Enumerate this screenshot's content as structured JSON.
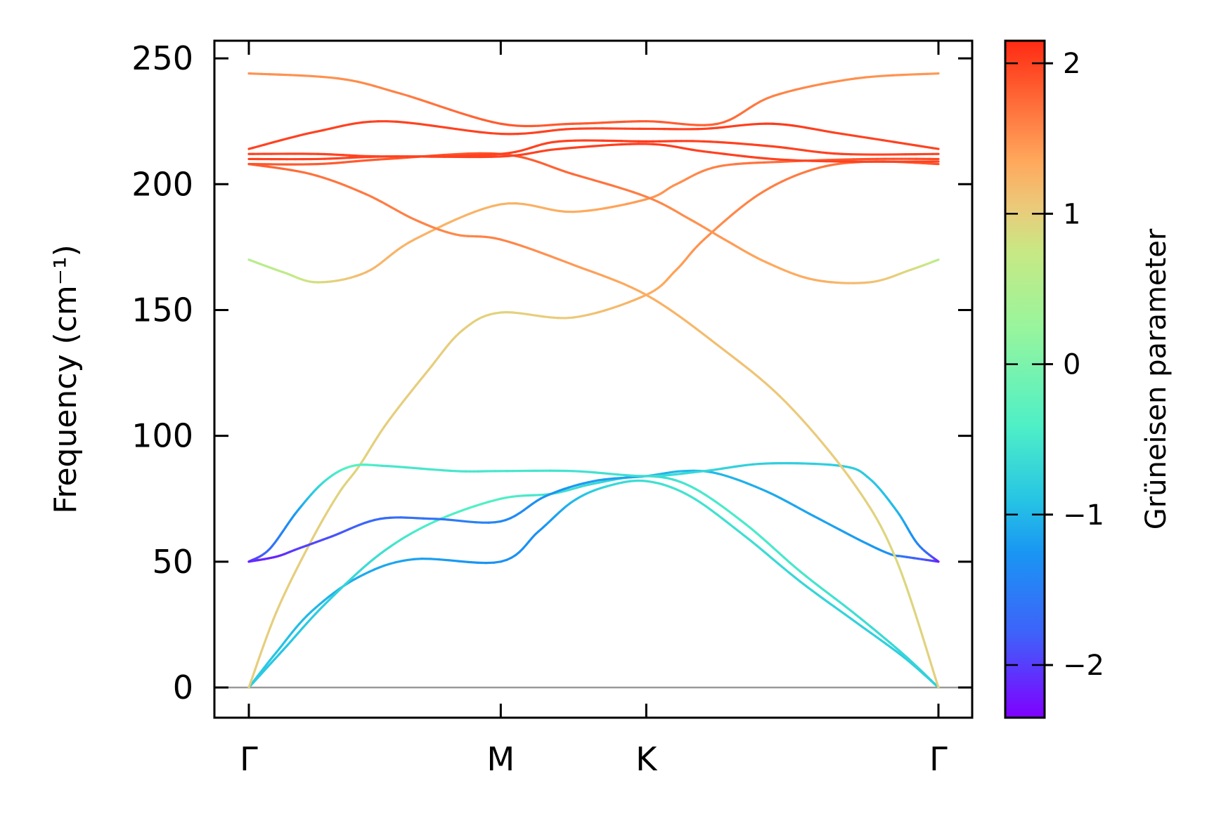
{
  "chart_data": {
    "type": "line",
    "ylabel": "Frequency (cm⁻¹)",
    "colorbar_label": "Grüneisen parameter",
    "ylim": [
      -12,
      257
    ],
    "yticks": [
      0,
      50,
      100,
      150,
      200,
      250
    ],
    "x_positions": [
      0.0,
      0.3653,
      0.5763,
      1.0
    ],
    "x_ticklabels": [
      "Γ",
      "M",
      "K",
      "Γ"
    ],
    "colorbar": {
      "range": [
        -2.35,
        2.15
      ],
      "ticks": [
        -2,
        -1,
        0,
        1,
        2
      ],
      "tick_labels": [
        "−2",
        "−1",
        "0",
        "1",
        "2"
      ],
      "colormap": "rainbow",
      "stops": [
        {
          "v": -2.35,
          "c": "#7f00ff"
        },
        {
          "v": -1.8,
          "c": "#3f61fa"
        },
        {
          "v": -1.25,
          "c": "#1996f3"
        },
        {
          "v": -0.9,
          "c": "#27c5e4"
        },
        {
          "v": -0.4,
          "c": "#4ff0c6"
        },
        {
          "v": 0.25,
          "c": "#99f59c"
        },
        {
          "v": 0.75,
          "c": "#c8e884"
        },
        {
          "v": 1.05,
          "c": "#ecc97a"
        },
        {
          "v": 1.35,
          "c": "#ffa85c"
        },
        {
          "v": 1.75,
          "c": "#ff6a38"
        },
        {
          "v": 2.15,
          "c": "#ff2a12"
        }
      ]
    },
    "zero_line": {
      "y": 0,
      "color": "#999999"
    },
    "series": [
      {
        "points": [
          [
            0.0,
            0,
            -0.8
          ],
          [
            0.04,
            14,
            -0.9
          ],
          [
            0.09,
            30,
            -1.0
          ],
          [
            0.16,
            44,
            -1.1
          ],
          [
            0.24,
            51,
            -1.15
          ],
          [
            0.3653,
            50,
            -1.3
          ],
          [
            0.42,
            62,
            -1.3
          ],
          [
            0.47,
            74,
            -1.0
          ],
          [
            0.52,
            80,
            -0.7
          ],
          [
            0.5763,
            82,
            -0.6
          ],
          [
            0.64,
            76,
            -0.55
          ],
          [
            0.72,
            60,
            -0.6
          ],
          [
            0.8,
            42,
            -0.7
          ],
          [
            0.88,
            26,
            -0.75
          ],
          [
            0.95,
            12,
            -0.8
          ],
          [
            1.0,
            0,
            -0.8
          ]
        ]
      },
      {
        "points": [
          [
            0.0,
            0,
            -0.8
          ],
          [
            0.05,
            15,
            -0.9
          ],
          [
            0.11,
            33,
            -0.8
          ],
          [
            0.19,
            53,
            -0.6
          ],
          [
            0.27,
            66,
            -0.4
          ],
          [
            0.3653,
            75,
            -0.4
          ],
          [
            0.44,
            77,
            -0.55
          ],
          [
            0.5,
            81,
            -0.7
          ],
          [
            0.5763,
            84,
            -0.7
          ],
          [
            0.64,
            80,
            -0.5
          ],
          [
            0.72,
            65,
            -0.45
          ],
          [
            0.8,
            46,
            -0.5
          ],
          [
            0.88,
            29,
            -0.6
          ],
          [
            0.95,
            13,
            -0.7
          ],
          [
            1.0,
            0,
            -0.8
          ]
        ]
      },
      {
        "points": [
          [
            0.0,
            0,
            1.0
          ],
          [
            0.04,
            30,
            1.0
          ],
          [
            0.09,
            58,
            1.0
          ],
          [
            0.13,
            77,
            0.95
          ],
          [
            0.16,
            88,
            0.95
          ],
          [
            0.2,
            105,
            1.0
          ],
          [
            0.26,
            126,
            1.0
          ],
          [
            0.31,
            142,
            1.0
          ],
          [
            0.3653,
            149,
            0.95
          ],
          [
            0.47,
            147,
            1.05
          ],
          [
            0.5763,
            156,
            1.3
          ],
          [
            0.62,
            166,
            1.4
          ],
          [
            0.66,
            178,
            1.5
          ],
          [
            0.74,
            196,
            1.6
          ],
          [
            0.82,
            206,
            1.65
          ],
          [
            0.9,
            209,
            1.75
          ],
          [
            1.0,
            208,
            1.9
          ]
        ]
      },
      {
        "points": [
          [
            0.0,
            50,
            -2.1
          ],
          [
            0.04,
            52,
            -2.15
          ],
          [
            0.07,
            55,
            -2.0
          ],
          [
            0.12,
            60,
            -1.9
          ],
          [
            0.19,
            67,
            -1.7
          ],
          [
            0.27,
            67,
            -1.6
          ],
          [
            0.3653,
            66,
            -1.4
          ],
          [
            0.43,
            76,
            -1.3
          ],
          [
            0.5,
            82,
            -1.2
          ],
          [
            0.5763,
            84,
            -1.1
          ],
          [
            0.63,
            86,
            -1.0
          ],
          [
            0.68,
            85,
            -1.0
          ],
          [
            0.75,
            78,
            -1.1
          ],
          [
            0.82,
            68,
            -1.15
          ],
          [
            0.89,
            58,
            -1.2
          ],
          [
            0.93,
            53,
            -1.3
          ],
          [
            0.95,
            52,
            -1.6
          ],
          [
            1.0,
            50,
            -2.1
          ]
        ]
      },
      {
        "points": [
          [
            0.0,
            50,
            -2.2
          ],
          [
            0.03,
            55,
            -1.7
          ],
          [
            0.07,
            70,
            -1.2
          ],
          [
            0.11,
            82,
            -0.6
          ],
          [
            0.15,
            88,
            -0.3
          ],
          [
            0.2,
            88,
            -0.5
          ],
          [
            0.3,
            86,
            -0.5
          ],
          [
            0.3653,
            86,
            -0.5
          ],
          [
            0.47,
            86,
            -0.55
          ],
          [
            0.5763,
            84,
            -0.6
          ],
          [
            0.66,
            86,
            -0.7
          ],
          [
            0.75,
            89,
            -0.8
          ],
          [
            0.86,
            88,
            -0.8
          ],
          [
            0.9,
            83,
            -0.85
          ],
          [
            0.94,
            70,
            -1.0
          ],
          [
            0.97,
            57,
            -1.4
          ],
          [
            1.0,
            50,
            -2.2
          ]
        ]
      },
      {
        "points": [
          [
            0.0,
            170,
            0.55
          ],
          [
            0.05,
            165,
            0.65
          ],
          [
            0.1,
            161,
            0.85
          ],
          [
            0.17,
            165,
            1.2
          ],
          [
            0.24,
            178,
            1.25
          ],
          [
            0.3653,
            192,
            1.25
          ],
          [
            0.47,
            189,
            1.3
          ],
          [
            0.5763,
            194,
            1.45
          ],
          [
            0.62,
            200,
            1.5
          ],
          [
            0.68,
            207,
            1.6
          ],
          [
            0.78,
            209,
            1.75
          ],
          [
            0.9,
            210,
            1.9
          ],
          [
            1.0,
            210,
            1.95
          ]
        ]
      },
      {
        "points": [
          [
            0.0,
            208,
            1.85
          ],
          [
            0.09,
            204,
            1.7
          ],
          [
            0.17,
            196,
            1.65
          ],
          [
            0.24,
            186,
            1.6
          ],
          [
            0.3,
            180,
            1.55
          ],
          [
            0.3653,
            178,
            1.6
          ],
          [
            0.47,
            168,
            1.45
          ],
          [
            0.5763,
            156,
            1.3
          ],
          [
            0.68,
            136,
            1.15
          ],
          [
            0.78,
            113,
            1.05
          ],
          [
            0.88,
            80,
            1.0
          ],
          [
            0.94,
            50,
            0.9
          ],
          [
            1.0,
            0,
            1.0
          ]
        ]
      },
      {
        "points": [
          [
            0.0,
            208,
            1.9
          ],
          [
            0.1,
            208,
            1.85
          ],
          [
            0.2,
            210,
            1.85
          ],
          [
            0.3653,
            212,
            1.9
          ],
          [
            0.47,
            204,
            1.75
          ],
          [
            0.5763,
            195,
            1.6
          ],
          [
            0.64,
            186,
            1.5
          ],
          [
            0.69,
            178,
            1.45
          ],
          [
            0.75,
            169,
            1.35
          ],
          [
            0.82,
            162,
            1.3
          ],
          [
            0.9,
            161,
            1.15
          ],
          [
            0.96,
            166,
            0.9
          ],
          [
            1.0,
            170,
            0.6
          ]
        ]
      },
      {
        "points": [
          [
            0.0,
            210,
            2.0
          ],
          [
            0.1,
            210,
            2.0
          ],
          [
            0.2,
            211,
            2.0
          ],
          [
            0.3653,
            211,
            2.0
          ],
          [
            0.45,
            214,
            2.0
          ],
          [
            0.5763,
            216,
            2.05
          ],
          [
            0.66,
            213,
            2.0
          ],
          [
            0.76,
            210,
            2.0
          ],
          [
            0.86,
            209,
            2.0
          ],
          [
            1.0,
            209,
            2.0
          ]
        ]
      },
      {
        "points": [
          [
            0.0,
            212,
            2.0
          ],
          [
            0.1,
            212,
            2.0
          ],
          [
            0.2,
            211,
            2.0
          ],
          [
            0.3653,
            212,
            2.0
          ],
          [
            0.45,
            217,
            2.0
          ],
          [
            0.5763,
            217,
            2.05
          ],
          [
            0.66,
            217,
            2.0
          ],
          [
            0.76,
            215,
            2.0
          ],
          [
            0.86,
            212,
            2.0
          ],
          [
            1.0,
            212,
            2.0
          ]
        ]
      },
      {
        "points": [
          [
            0.0,
            214,
            2.0
          ],
          [
            0.1,
            221,
            2.0
          ],
          [
            0.2,
            225,
            2.0
          ],
          [
            0.3653,
            220,
            2.0
          ],
          [
            0.47,
            222,
            2.0
          ],
          [
            0.5763,
            222,
            2.0
          ],
          [
            0.66,
            222,
            2.0
          ],
          [
            0.76,
            224,
            2.05
          ],
          [
            0.86,
            220,
            2.0
          ],
          [
            1.0,
            214,
            2.0
          ]
        ]
      },
      {
        "points": [
          [
            0.0,
            244,
            1.5
          ],
          [
            0.13,
            242,
            1.5
          ],
          [
            0.22,
            236,
            1.6
          ],
          [
            0.3653,
            224,
            1.85
          ],
          [
            0.47,
            224,
            1.85
          ],
          [
            0.5763,
            225,
            1.85
          ],
          [
            0.68,
            224,
            1.8
          ],
          [
            0.76,
            235,
            1.6
          ],
          [
            0.88,
            242,
            1.5
          ],
          [
            1.0,
            244,
            1.45
          ]
        ]
      }
    ]
  }
}
